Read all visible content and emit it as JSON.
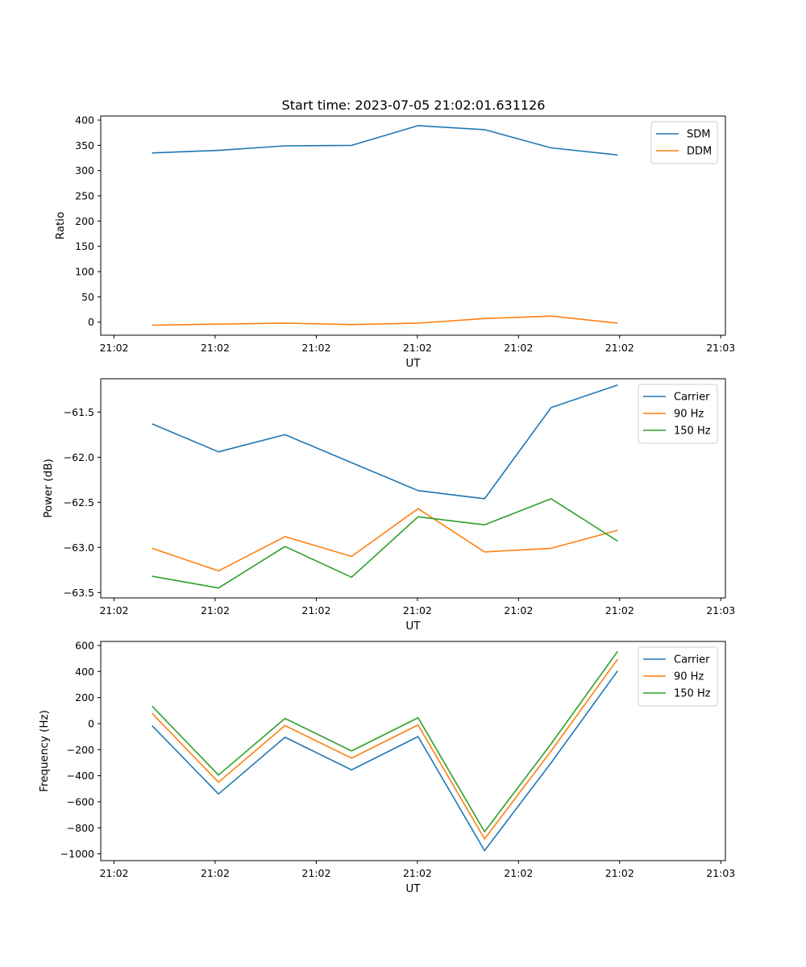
{
  "chart_data": [
    {
      "type": "line",
      "title": "Start time: 2023-07-05 21:02:01.631126",
      "xlabel": "UT",
      "ylabel": "Ratio",
      "x": [
        1,
        2,
        3,
        4,
        5,
        6,
        7,
        8
      ],
      "xlim": [
        0.23,
        9.62
      ],
      "xticks": [
        0.43,
        1.95,
        3.47,
        4.99,
        6.51,
        8.03,
        9.55
      ],
      "xtick_labels": [
        "21:02",
        "21:02",
        "21:02",
        "21:02",
        "21:02",
        "21:02",
        "21:03"
      ],
      "ylim": [
        -26,
        408
      ],
      "yticks": [
        0,
        50,
        100,
        150,
        200,
        250,
        300,
        350,
        400
      ],
      "ytick_labels": [
        "0",
        "50",
        "100",
        "150",
        "200",
        "250",
        "300",
        "350",
        "400"
      ],
      "legend_loc": "top-right",
      "series": [
        {
          "name": "SDM",
          "color": "#1f77b4",
          "values": [
            335,
            340,
            349,
            350,
            389,
            381,
            345,
            331
          ]
        },
        {
          "name": "DDM",
          "color": "#ff7f0e",
          "values": [
            -6,
            -4,
            -2,
            -5,
            -2,
            7,
            12,
            -2
          ]
        }
      ]
    },
    {
      "type": "line",
      "title": "",
      "xlabel": "UT",
      "ylabel": "Power (dB)",
      "x": [
        1,
        2,
        3,
        4,
        5,
        6,
        7,
        8
      ],
      "xlim": [
        0.23,
        9.62
      ],
      "xticks": [
        0.43,
        1.95,
        3.47,
        4.99,
        6.51,
        8.03,
        9.55
      ],
      "xtick_labels": [
        "21:02",
        "21:02",
        "21:02",
        "21:02",
        "21:02",
        "21:02",
        "21:03"
      ],
      "ylim": [
        -63.56,
        -61.13
      ],
      "yticks": [
        -63.5,
        -63.0,
        -62.5,
        -62.0,
        -61.5
      ],
      "ytick_labels": [
        "−63.5",
        "−63.0",
        "−62.5",
        "−62.0",
        "−61.5"
      ],
      "legend_loc": "top-right",
      "series": [
        {
          "name": "Carrier",
          "color": "#1f77b4",
          "values": [
            -61.63,
            -61.94,
            -61.75,
            -62.06,
            -62.37,
            -62.46,
            -61.45,
            -61.2
          ]
        },
        {
          "name": "90 Hz",
          "color": "#ff7f0e",
          "values": [
            -63.01,
            -63.26,
            -62.88,
            -63.1,
            -62.57,
            -63.05,
            -63.01,
            -62.81
          ]
        },
        {
          "name": "150 Hz",
          "color": "#2ca02c",
          "values": [
            -63.32,
            -63.45,
            -62.99,
            -63.33,
            -62.66,
            -62.75,
            -62.46,
            -62.93
          ]
        }
      ]
    },
    {
      "type": "line",
      "title": "",
      "xlabel": "UT",
      "ylabel": "Frequency (Hz)",
      "x": [
        1,
        2,
        3,
        4,
        5,
        6,
        7,
        8
      ],
      "xlim": [
        0.23,
        9.62
      ],
      "xticks": [
        0.43,
        1.95,
        3.47,
        4.99,
        6.51,
        8.03,
        9.55
      ],
      "xtick_labels": [
        "21:02",
        "21:02",
        "21:02",
        "21:02",
        "21:02",
        "21:02",
        "21:03"
      ],
      "ylim": [
        -1052,
        631
      ],
      "yticks": [
        -1000,
        -800,
        -600,
        -400,
        -200,
        0,
        200,
        400,
        600
      ],
      "ytick_labels": [
        "−1000",
        "−800",
        "−600",
        "−400",
        "−200",
        "0",
        "200",
        "400",
        "600"
      ],
      "legend_loc": "top-right",
      "series": [
        {
          "name": "Carrier",
          "color": "#1f77b4",
          "values": [
            -15,
            -540,
            -105,
            -355,
            -100,
            -975,
            -300,
            405
          ]
        },
        {
          "name": "90 Hz",
          "color": "#ff7f0e",
          "values": [
            80,
            -450,
            -15,
            -265,
            -10,
            -885,
            -210,
            495
          ]
        },
        {
          "name": "150 Hz",
          "color": "#2ca02c",
          "values": [
            135,
            -395,
            40,
            -210,
            45,
            -830,
            -155,
            555
          ]
        }
      ]
    }
  ]
}
